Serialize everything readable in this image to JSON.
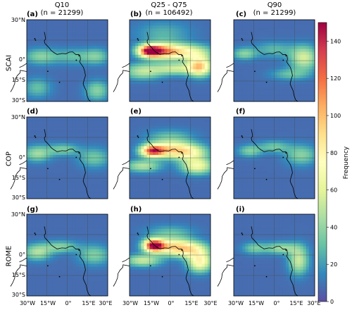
{
  "chart_data": {
    "type": "heatmap",
    "columns": [
      {
        "title": "Q10",
        "subtitle": "(n = 21299)"
      },
      {
        "title": "Q25 - Q75",
        "subtitle": "(n = 106492)"
      },
      {
        "title": "Q90",
        "subtitle": "(n = 21299)"
      }
    ],
    "rows": [
      "SCAI",
      "COP",
      "ROME"
    ],
    "panel_letters": [
      "(a)",
      "(b)",
      "(c)",
      "(d)",
      "(e)",
      "(f)",
      "(g)",
      "(h)",
      "(i)"
    ],
    "lon_ticks": [
      "30°W",
      "15°W",
      "0°",
      "15°E",
      "30°E"
    ],
    "lat_ticks": [
      "30°N",
      "0°",
      "15°S",
      "30°S"
    ],
    "lon_range": [
      -30,
      30
    ],
    "lat_range": [
      -30,
      30
    ],
    "colorbar": {
      "label": "Frequency",
      "range": [
        0,
        150
      ],
      "ticks": [
        "0",
        "20",
        "40",
        "60",
        "80",
        "100",
        "120",
        "140"
      ],
      "colormap": "Spectral_r"
    },
    "panels": [
      {
        "id": "a",
        "row": "SCAI",
        "col": "Q10",
        "base": 8,
        "blobs": [
          {
            "lon": -20,
            "lat": 3,
            "slon": 8,
            "slat": 4,
            "v": 28
          },
          {
            "lon": 5,
            "lat": 3,
            "slon": 12,
            "slat": 4,
            "v": 22
          },
          {
            "lon": 22,
            "lat": 3,
            "slon": 6,
            "slat": 4,
            "v": 22
          },
          {
            "lon": -22,
            "lat": -20,
            "slon": 7,
            "slat": 5,
            "v": 22
          },
          {
            "lon": 22,
            "lat": -22,
            "slon": 6,
            "slat": 5,
            "v": 30
          }
        ]
      },
      {
        "id": "b",
        "row": "SCAI",
        "col": "Q25 - Q75",
        "base": 8,
        "blobs": [
          {
            "lon": -15,
            "lat": 7,
            "slon": 6,
            "slat": 3,
            "v": 130
          },
          {
            "lon": -5,
            "lat": 7,
            "slon": 9,
            "slat": 4,
            "v": 75
          },
          {
            "lon": 12,
            "lat": 6,
            "slon": 12,
            "slat": 4,
            "v": 60
          },
          {
            "lon": 22,
            "lat": -4,
            "slon": 6,
            "slat": 5,
            "v": 80
          },
          {
            "lon": 5,
            "lat": -6,
            "slon": 12,
            "slat": 3,
            "v": 45
          },
          {
            "lon": -20,
            "lat": -8,
            "slon": 10,
            "slat": 4,
            "v": 40
          },
          {
            "lon": -5,
            "lat": 20,
            "slon": 14,
            "slat": 6,
            "v": 18
          }
        ]
      },
      {
        "id": "c",
        "row": "SCAI",
        "col": "Q90",
        "base": 8,
        "blobs": [
          {
            "lon": -22,
            "lat": 5,
            "slon": 6,
            "slat": 3,
            "v": 30
          },
          {
            "lon": 0,
            "lat": 8,
            "slon": 10,
            "slat": 4,
            "v": 20
          },
          {
            "lon": 22,
            "lat": 2,
            "slon": 7,
            "slat": 6,
            "v": 48
          },
          {
            "lon": 12,
            "lat": -10,
            "slon": 10,
            "slat": 3,
            "v": 22
          }
        ]
      },
      {
        "id": "d",
        "row": "COP",
        "col": "Q10",
        "base": 8,
        "blobs": [
          {
            "lon": -22,
            "lat": 3,
            "slon": 7,
            "slat": 4,
            "v": 35
          },
          {
            "lon": -3,
            "lat": 6,
            "slon": 8,
            "slat": 3,
            "v": 28
          },
          {
            "lon": 20,
            "lat": 0,
            "slon": 8,
            "slat": 5,
            "v": 25
          }
        ]
      },
      {
        "id": "e",
        "row": "COP",
        "col": "Q25 - Q75",
        "base": 8,
        "blobs": [
          {
            "lon": -13,
            "lat": 5,
            "slon": 6,
            "slat": 3,
            "v": 110
          },
          {
            "lon": 0,
            "lat": 6,
            "slon": 10,
            "slat": 4,
            "v": 70
          },
          {
            "lon": 15,
            "lat": 4,
            "slon": 9,
            "slat": 4,
            "v": 55
          },
          {
            "lon": 20,
            "lat": -6,
            "slon": 8,
            "slat": 4,
            "v": 60
          },
          {
            "lon": -20,
            "lat": -6,
            "slon": 9,
            "slat": 3,
            "v": 40
          },
          {
            "lon": 0,
            "lat": 15,
            "slon": 12,
            "slat": 4,
            "v": 22
          }
        ]
      },
      {
        "id": "f",
        "row": "COP",
        "col": "Q90",
        "base": 8,
        "blobs": [
          {
            "lon": -18,
            "lat": 5,
            "slon": 6,
            "slat": 3,
            "v": 28
          },
          {
            "lon": 0,
            "lat": 8,
            "slon": 8,
            "slat": 3,
            "v": 25
          },
          {
            "lon": 20,
            "lat": 2,
            "slon": 8,
            "slat": 5,
            "v": 30
          }
        ]
      },
      {
        "id": "g",
        "row": "ROME",
        "col": "Q10",
        "base": 8,
        "blobs": [
          {
            "lon": -22,
            "lat": 2,
            "slon": 7,
            "slat": 4,
            "v": 38
          },
          {
            "lon": -5,
            "lat": 6,
            "slon": 9,
            "slat": 3,
            "v": 30
          },
          {
            "lon": 20,
            "lat": 0,
            "slon": 8,
            "slat": 5,
            "v": 28
          }
        ]
      },
      {
        "id": "h",
        "row": "ROME",
        "col": "Q25 - Q75",
        "base": 8,
        "blobs": [
          {
            "lon": -12,
            "lat": 7,
            "slon": 5,
            "slat": 3,
            "v": 135
          },
          {
            "lon": 0,
            "lat": 6,
            "slon": 10,
            "slat": 4,
            "v": 70
          },
          {
            "lon": 15,
            "lat": 4,
            "slon": 9,
            "slat": 4,
            "v": 60
          },
          {
            "lon": 22,
            "lat": -5,
            "slon": 6,
            "slat": 5,
            "v": 70
          },
          {
            "lon": -20,
            "lat": -4,
            "slon": 9,
            "slat": 3,
            "v": 45
          },
          {
            "lon": 0,
            "lat": 16,
            "slon": 12,
            "slat": 4,
            "v": 22
          }
        ]
      },
      {
        "id": "i",
        "row": "ROME",
        "col": "Q90",
        "base": 8,
        "blobs": [
          {
            "lon": -15,
            "lat": 5,
            "slon": 6,
            "slat": 3,
            "v": 25
          },
          {
            "lon": 5,
            "lat": 5,
            "slon": 9,
            "slat": 3,
            "v": 35
          },
          {
            "lon": 18,
            "lat": -4,
            "slon": 5,
            "slat": 7,
            "v": 45
          }
        ]
      }
    ]
  }
}
